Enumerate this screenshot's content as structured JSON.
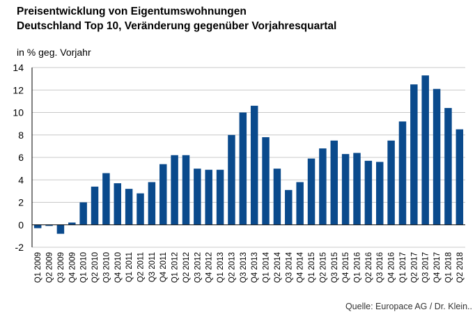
{
  "colors": {
    "bar": "#0a4a8c",
    "grid": "#c8c8c8",
    "axis": "#000000",
    "text": "#000000"
  },
  "chart_data": {
    "type": "bar",
    "title": "Preisentwicklung von Eigentumswohnungen",
    "subtitle": "Deutschland Top 10, Veränderung gegenüber Vorjahresquartal",
    "ylabel": "in % geg. Vorjahr",
    "xlabel": "",
    "ylim": [
      -2,
      14
    ],
    "yticks": [
      -2,
      0,
      2,
      4,
      6,
      8,
      10,
      12,
      14
    ],
    "grid": true,
    "legend": "none",
    "categories": [
      "Q1 2009",
      "Q2 2009",
      "Q3 2009",
      "Q4 2009",
      "Q1 2010",
      "Q2 2010",
      "Q3 2010",
      "Q4 2010",
      "Q1 2011",
      "Q2 2011",
      "Q3 2011",
      "Q4 2011",
      "Q1 2012",
      "Q2 2012",
      "Q3 2012",
      "Q4 2012",
      "Q1 2013",
      "Q2 2013",
      "Q3 2013",
      "Q4 2013",
      "Q1 2014",
      "Q2 2014",
      "Q3 2014",
      "Q4 2014",
      "Q1 2015",
      "Q2 2015",
      "Q3 2015",
      "Q4 2015",
      "Q1 2016",
      "Q2 2016",
      "Q3 2016",
      "Q4 2016",
      "Q1 2017",
      "Q2 2017",
      "Q3 2017",
      "Q4 2017",
      "Q1 2018",
      "Q2 2018"
    ],
    "values": [
      -0.3,
      -0.1,
      -0.8,
      0.2,
      2.0,
      3.4,
      4.6,
      3.7,
      3.2,
      2.8,
      3.8,
      5.4,
      6.2,
      6.2,
      5.0,
      4.9,
      4.9,
      8.0,
      10.0,
      10.6,
      7.8,
      5.0,
      3.1,
      3.8,
      5.9,
      6.8,
      7.5,
      6.3,
      6.4,
      5.7,
      5.6,
      7.5,
      9.2,
      12.5,
      13.3,
      12.1,
      10.4,
      8.5
    ],
    "source": "Quelle: Europace AG / Dr. Klein.."
  }
}
